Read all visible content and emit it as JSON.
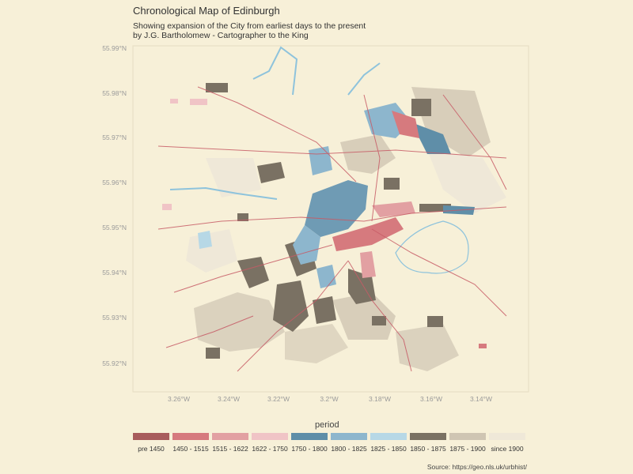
{
  "header": {
    "title": "Chronological Map of Edinburgh",
    "subtitle_line1": "Showing expansion of the City from earliest days to the present",
    "subtitle_line2": "by J.G. Bartholomew - Cartographer to the King"
  },
  "axes": {
    "lat_ticks": [
      "55.99°N",
      "55.98°N",
      "55.97°N",
      "55.96°N",
      "55.95°N",
      "55.94°N",
      "55.93°N",
      "55.92°N"
    ],
    "lon_ticks": [
      "3.26°W",
      "3.24°W",
      "3.22°W",
      "3.2°W",
      "3.18°W",
      "3.16°W",
      "3.14°W"
    ]
  },
  "legend": {
    "title": "period",
    "items": [
      {
        "label": "pre 1450",
        "color": "#a85c5c"
      },
      {
        "label": "1450 - 1515",
        "color": "#d67a7e"
      },
      {
        "label": "1515 - 1622",
        "color": "#e2a0a2"
      },
      {
        "label": "1622 - 1750",
        "color": "#f0c4c6"
      },
      {
        "label": "1750 - 1800",
        "color": "#5f8ea8"
      },
      {
        "label": "1800 - 1825",
        "color": "#8db6cd"
      },
      {
        "label": "1825 - 1850",
        "color": "#b7d8e6"
      },
      {
        "label": "1850 - 1875",
        "color": "#7a7163"
      },
      {
        "label": "1875 - 1900",
        "color": "#cfc5b3"
      },
      {
        "label": "since 1900",
        "color": "#efe8d8"
      }
    ]
  },
  "source": "Source: https://geo.nls.uk/urbhist/",
  "colors": {
    "background": "#f7f0d8",
    "road": "#c75b66",
    "water": "#8ec3dc",
    "frame": "#e8dfc4"
  }
}
